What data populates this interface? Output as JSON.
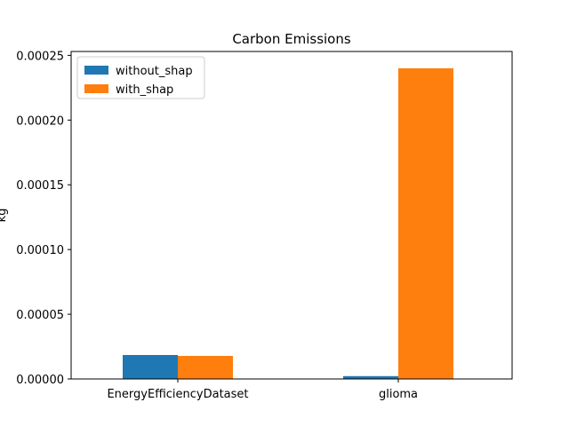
{
  "chart_data": {
    "type": "bar",
    "title": "Carbon Emissions",
    "xlabel": "",
    "ylabel": "kg",
    "categories": [
      "EnergyEfficiencyDataset",
      "glioma"
    ],
    "series": [
      {
        "name": "without_shap",
        "color": "#1f77b4",
        "values": [
          1.85e-05,
          2.2e-06
        ]
      },
      {
        "name": "with_shap",
        "color": "#ff7f0e",
        "values": [
          1.78e-05,
          0.00024
        ]
      }
    ],
    "ylim": [
      0,
      0.000253
    ],
    "yticks": [
      "0.00000",
      "0.00005",
      "0.00010",
      "0.00015",
      "0.00020",
      "0.00025"
    ],
    "ytick_values": [
      0,
      5e-05,
      0.0001,
      0.00015,
      0.0002,
      0.00025
    ],
    "grid": false,
    "legend": "top-left"
  }
}
